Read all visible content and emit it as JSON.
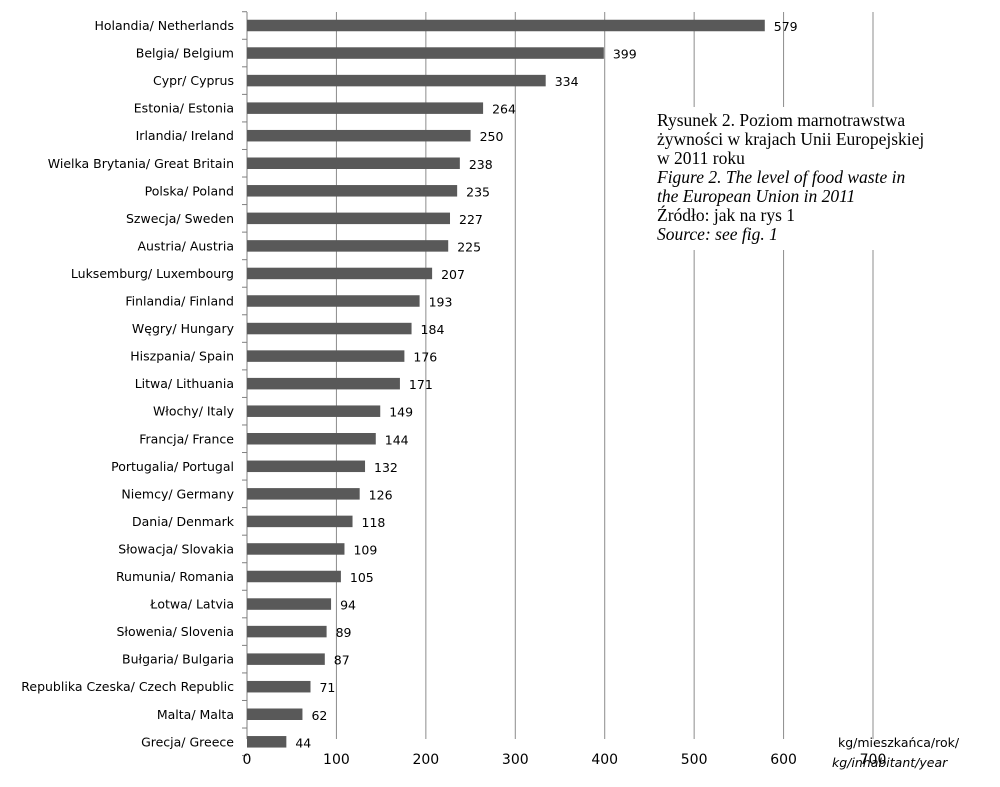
{
  "chart_data": {
    "type": "bar",
    "orientation": "horizontal",
    "categories": [
      "Holandia/ Netherlands",
      "Belgia/ Belgium",
      "Cypr/ Cyprus",
      "Estonia/ Estonia",
      "Irlandia/ Ireland",
      "Wielka Brytania/ Great Britain",
      "Polska/ Poland",
      "Szwecja/ Sweden",
      "Austria/ Austria",
      "Luksemburg/ Luxembourg",
      "Finlandia/ Finland",
      "Węgry/ Hungary",
      "Hiszpania/ Spain",
      "Litwa/ Lithuania",
      "Włochy/ Italy",
      "Francja/ France",
      "Portugalia/ Portugal",
      "Niemcy/ Germany",
      "Dania/ Denmark",
      "Słowacja/ Slovakia",
      "Rumunia/ Romania",
      "Łotwa/ Latvia",
      "Słowenia/ Slovenia",
      "Bułgaria/ Bulgaria",
      "Republika Czeska/ Czech Republic",
      "Malta/ Malta",
      "Grecja/ Greece"
    ],
    "values": [
      579,
      399,
      334,
      264,
      250,
      238,
      235,
      227,
      225,
      207,
      193,
      184,
      176,
      171,
      149,
      144,
      132,
      126,
      118,
      109,
      105,
      94,
      89,
      87,
      71,
      62,
      44
    ],
    "xlim": [
      0,
      700
    ],
    "xticks": [
      "0",
      "100",
      "200",
      "300",
      "400",
      "500",
      "600",
      "700"
    ],
    "xlabel_line1": "kg/mieszkańca/rok/",
    "xlabel_line2": "kg/inhabitant/year",
    "grid": "vertical",
    "bar_color": "#595959",
    "grid_color": "#8c8c8c"
  },
  "caption": {
    "line1": "Rysunek 2. Poziom marnotrawstwa",
    "line2": "żywności w krajach Unii Europejskiej",
    "line3": "w 2011 roku",
    "line4": "Figure 2. The level of food waste in",
    "line5": "the European Union in 2011",
    "line6": "Źródło: jak na rys 1",
    "line7": "Source: see fig. 1"
  }
}
